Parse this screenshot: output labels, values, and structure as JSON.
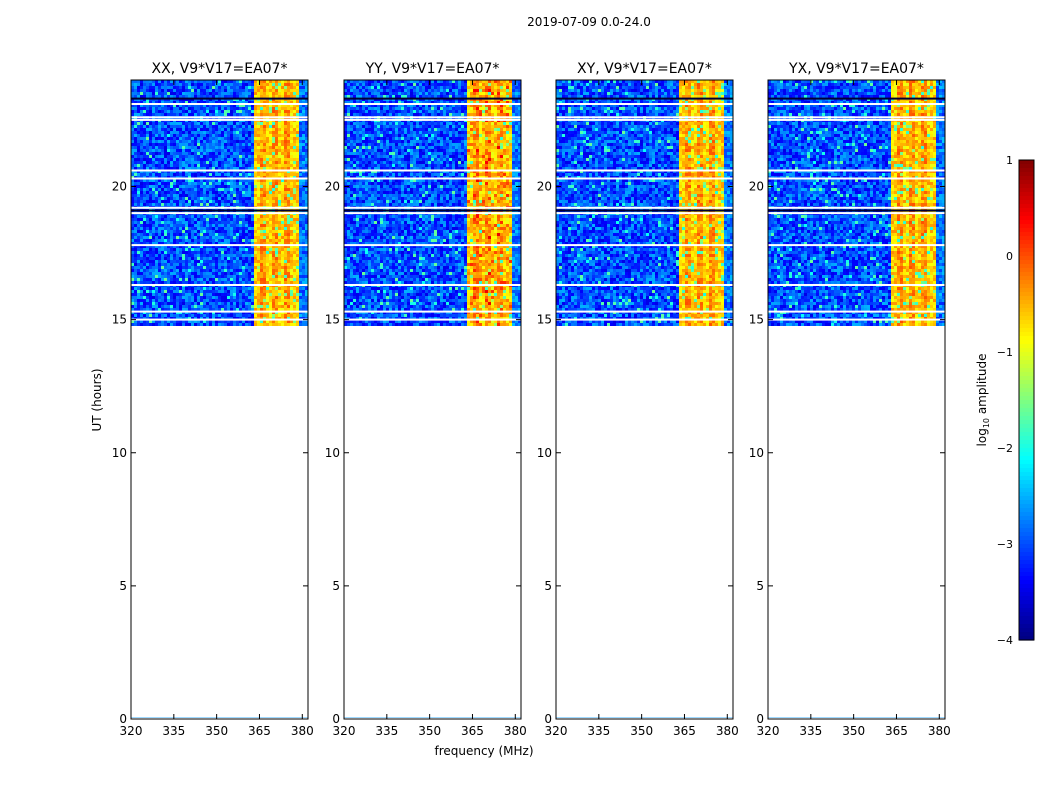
{
  "figure_title": "2019-07-09 0.0-24.0",
  "colors": {
    "frame": "#000000",
    "background": "#ffffff"
  },
  "chart_data": {
    "type": "heatmap",
    "suptitle": "2019-07-09 0.0-24.0",
    "xlabel": "frequency (MHz)",
    "ylabel": "UT (hours)",
    "xlim": [
      320,
      382
    ],
    "ylim": [
      0,
      24
    ],
    "xticks": [
      320,
      335,
      350,
      365,
      380
    ],
    "yticks": [
      0,
      5,
      10,
      15,
      20
    ],
    "data_time_range_hours": [
      14.8,
      24
    ],
    "strong_band_mhz": [
      363,
      379
    ],
    "flagged_rows_hours": [
      15.0,
      15.3,
      16.3,
      17.8,
      19.0,
      19.2,
      20.3,
      20.6,
      22.5,
      22.6,
      23.1
    ],
    "panels": [
      {
        "title": "XX, V9*V17=EA07*",
        "pol": "XX"
      },
      {
        "title": "YY, V9*V17=EA07*",
        "pol": "YY"
      },
      {
        "title": "XY, V9*V17=EA07*",
        "pol": "XY"
      },
      {
        "title": "YX, V9*V17=EA07*",
        "pol": "YX"
      }
    ],
    "colorbar": {
      "label_base": "log",
      "label_sub": "10",
      "label_rest": " amplitude",
      "range": [
        -4,
        1
      ],
      "ticks": [
        "1",
        "0",
        "−1",
        "−2",
        "−3",
        "−4"
      ],
      "ticks_values": [
        1,
        0,
        -1,
        -2,
        -3,
        -4
      ],
      "colormap": "jet"
    }
  }
}
